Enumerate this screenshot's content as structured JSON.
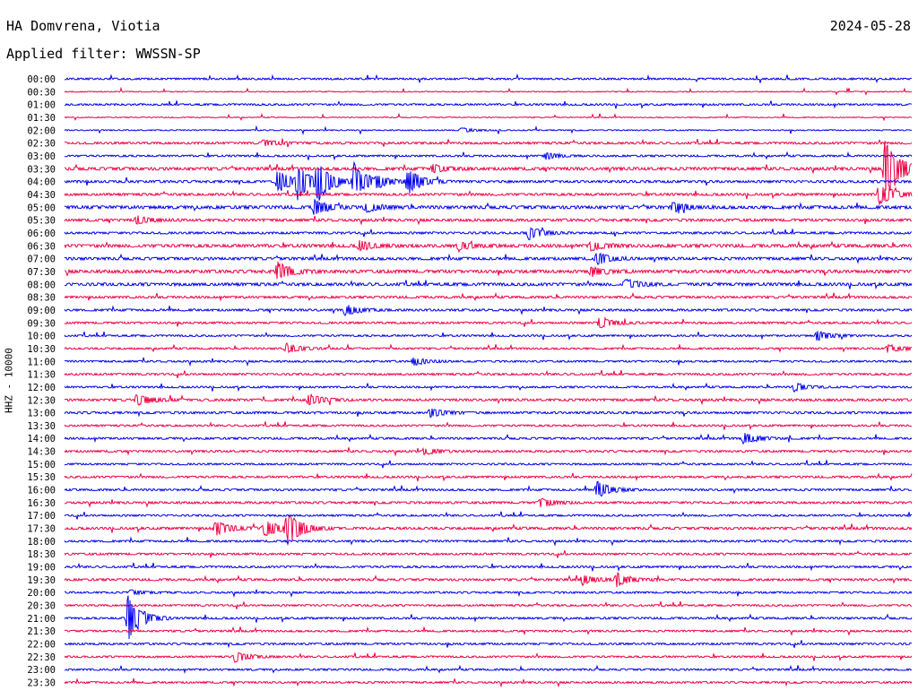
{
  "header": {
    "station": "HA Domvrena, Viotia",
    "date": "2024-05-28",
    "filter": "Applied filter: WWSSN-SP"
  },
  "chart_data": {
    "type": "line",
    "title": "HA Domvrena, Viotia",
    "subtitle": "Applied filter: WWSSN-SP",
    "date": "2024-05-28",
    "ylabel": "HHZ - 10000",
    "trace_colors": [
      "#0000ee",
      "#ee0044"
    ],
    "row_times": [
      "00:00",
      "00:30",
      "01:00",
      "01:30",
      "02:00",
      "02:30",
      "03:00",
      "03:30",
      "04:00",
      "04:30",
      "05:00",
      "05:30",
      "06:00",
      "06:30",
      "07:00",
      "07:30",
      "08:00",
      "08:30",
      "09:00",
      "09:30",
      "10:00",
      "10:30",
      "11:00",
      "11:30",
      "12:00",
      "12:30",
      "13:00",
      "13:30",
      "14:00",
      "14:30",
      "15:00",
      "15:30",
      "16:00",
      "16:30",
      "17:00",
      "17:30",
      "18:00",
      "18:30",
      "19:00",
      "19:30",
      "20:00",
      "20:30",
      "21:00",
      "21:30",
      "22:00",
      "22:30",
      "23:00",
      "23:30"
    ],
    "noise_level": [
      1.0,
      0.5,
      1.0,
      0.5,
      0.6,
      1.2,
      1.0,
      1.6,
      1.3,
      1.3,
      1.7,
      1.4,
      1.2,
      1.7,
      1.5,
      1.7,
      1.6,
      1.2,
      1.2,
      1.1,
      1.0,
      1.0,
      1.0,
      1.1,
      1.0,
      1.3,
      1.2,
      1.0,
      1.1,
      1.1,
      1.0,
      1.1,
      1.1,
      1.2,
      1.0,
      1.3,
      1.1,
      1.1,
      1.1,
      1.2,
      1.0,
      1.0,
      1.1,
      1.0,
      1.1,
      1.0,
      1.0,
      1.0
    ],
    "events": [
      {
        "row": 4,
        "minute": 14,
        "amplitude": 3
      },
      {
        "row": 5,
        "minute": 7,
        "amplitude": 4
      },
      {
        "row": 6,
        "minute": 17,
        "amplitude": 4
      },
      {
        "row": 7,
        "minute": 13,
        "amplitude": 5
      },
      {
        "row": 7,
        "minute": 29,
        "amplitude": 42
      },
      {
        "row": 8,
        "minute": 7.5,
        "amplitude": 14
      },
      {
        "row": 8,
        "minute": 8.2,
        "amplitude": 20
      },
      {
        "row": 8,
        "minute": 8.9,
        "amplitude": 24
      },
      {
        "row": 8,
        "minute": 10.2,
        "amplitude": 22
      },
      {
        "row": 8,
        "minute": 12.1,
        "amplitude": 16
      },
      {
        "row": 8,
        "minute": 11.0,
        "amplitude": 5
      },
      {
        "row": 9,
        "minute": 28.8,
        "amplitude": 14
      },
      {
        "row": 10,
        "minute": 8.8,
        "amplitude": 10
      },
      {
        "row": 10,
        "minute": 10.6,
        "amplitude": 6
      },
      {
        "row": 10,
        "minute": 21.5,
        "amplitude": 6
      },
      {
        "row": 11,
        "minute": 2.5,
        "amplitude": 5
      },
      {
        "row": 12,
        "minute": 16.4,
        "amplitude": 8
      },
      {
        "row": 13,
        "minute": 10.4,
        "amplitude": 6
      },
      {
        "row": 13,
        "minute": 13.9,
        "amplitude": 5
      },
      {
        "row": 13,
        "minute": 18.6,
        "amplitude": 6
      },
      {
        "row": 14,
        "minute": 18.8,
        "amplitude": 8
      },
      {
        "row": 15,
        "minute": 7.5,
        "amplitude": 12
      },
      {
        "row": 15,
        "minute": 18.6,
        "amplitude": 6
      },
      {
        "row": 16,
        "minute": 19.8,
        "amplitude": 7
      },
      {
        "row": 18,
        "minute": 9.9,
        "amplitude": 7
      },
      {
        "row": 19,
        "minute": 18.9,
        "amplitude": 8
      },
      {
        "row": 20,
        "minute": 26.6,
        "amplitude": 6
      },
      {
        "row": 21,
        "minute": 7.8,
        "amplitude": 6
      },
      {
        "row": 21,
        "minute": 29.1,
        "amplitude": 5
      },
      {
        "row": 22,
        "minute": 12.3,
        "amplitude": 5
      },
      {
        "row": 24,
        "minute": 25.8,
        "amplitude": 5
      },
      {
        "row": 25,
        "minute": 2.5,
        "amplitude": 8
      },
      {
        "row": 25,
        "minute": 8.6,
        "amplitude": 7
      },
      {
        "row": 26,
        "minute": 12.9,
        "amplitude": 6
      },
      {
        "row": 28,
        "minute": 24.0,
        "amplitude": 7
      },
      {
        "row": 29,
        "minute": 12.7,
        "amplitude": 4
      },
      {
        "row": 32,
        "minute": 18.8,
        "amplitude": 11
      },
      {
        "row": 33,
        "minute": 16.8,
        "amplitude": 6
      },
      {
        "row": 35,
        "minute": 5.3,
        "amplitude": 9
      },
      {
        "row": 35,
        "minute": 7.8,
        "amplitude": 10
      },
      {
        "row": 35,
        "minute": 7.0,
        "amplitude": 7
      },
      {
        "row": 35,
        "minute": 7.9,
        "amplitude": 6
      },
      {
        "row": 35,
        "minute": 8.0,
        "amplitude": 5
      },
      {
        "row": 35,
        "minute": 7.1,
        "amplitude": 5
      },
      {
        "row": 39,
        "minute": 19.5,
        "amplitude": 8
      },
      {
        "row": 39,
        "minute": 18.3,
        "amplitude": 6
      },
      {
        "row": 40,
        "minute": 2.3,
        "amplitude": 3
      },
      {
        "row": 42,
        "minute": 2.2,
        "amplitude": 28
      },
      {
        "row": 45,
        "minute": 6.0,
        "amplitude": 7
      }
    ]
  }
}
